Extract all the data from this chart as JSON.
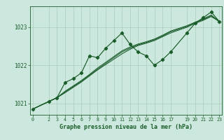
{
  "bg_color": "#cce8de",
  "grid_color": "#aaccbb",
  "line_color": "#1a5c2a",
  "marker_color": "#1a5c2a",
  "title": "Graphe pression niveau de la mer (hPa)",
  "title_color": "#1a5c2a",
  "xlim": [
    -0.3,
    23.3
  ],
  "ylim": [
    1020.7,
    1023.55
  ],
  "yticks": [
    1021,
    1022,
    1023
  ],
  "xticks": [
    0,
    2,
    3,
    4,
    5,
    6,
    7,
    8,
    9,
    10,
    11,
    12,
    13,
    14,
    15,
    16,
    17,
    19,
    20,
    21,
    22,
    23
  ],
  "series": [
    [
      0,
      1020.85
    ],
    [
      2,
      1021.05
    ],
    [
      3,
      1021.15
    ],
    [
      4,
      1021.55
    ],
    [
      5,
      1021.65
    ],
    [
      6,
      1021.8
    ],
    [
      7,
      1022.25
    ],
    [
      8,
      1022.2
    ],
    [
      9,
      1022.45
    ],
    [
      10,
      1022.65
    ],
    [
      11,
      1022.85
    ],
    [
      12,
      1022.55
    ],
    [
      13,
      1022.35
    ],
    [
      14,
      1022.25
    ],
    [
      15,
      1022.0
    ],
    [
      16,
      1022.15
    ],
    [
      17,
      1022.35
    ],
    [
      19,
      1022.85
    ],
    [
      20,
      1023.1
    ],
    [
      21,
      1023.25
    ],
    [
      22,
      1023.4
    ],
    [
      23,
      1023.15
    ]
  ],
  "series2": [
    [
      0,
      1020.85
    ],
    [
      2,
      1021.05
    ],
    [
      3,
      1021.15
    ],
    [
      4,
      1021.28
    ],
    [
      5,
      1021.42
    ],
    [
      6,
      1021.56
    ],
    [
      7,
      1021.72
    ],
    [
      8,
      1021.88
    ],
    [
      9,
      1022.02
    ],
    [
      10,
      1022.16
    ],
    [
      11,
      1022.3
    ],
    [
      12,
      1022.42
    ],
    [
      13,
      1022.52
    ],
    [
      14,
      1022.58
    ],
    [
      15,
      1022.65
    ],
    [
      16,
      1022.75
    ],
    [
      17,
      1022.85
    ],
    [
      19,
      1023.0
    ],
    [
      20,
      1023.1
    ],
    [
      21,
      1023.18
    ],
    [
      22,
      1023.28
    ],
    [
      23,
      1023.15
    ]
  ],
  "series3": [
    [
      0,
      1020.85
    ],
    [
      2,
      1021.05
    ],
    [
      3,
      1021.15
    ],
    [
      4,
      1021.3
    ],
    [
      5,
      1021.44
    ],
    [
      6,
      1021.58
    ],
    [
      7,
      1021.74
    ],
    [
      8,
      1021.9
    ],
    [
      9,
      1022.05
    ],
    [
      10,
      1022.2
    ],
    [
      11,
      1022.35
    ],
    [
      12,
      1022.45
    ],
    [
      13,
      1022.54
    ],
    [
      14,
      1022.6
    ],
    [
      15,
      1022.67
    ],
    [
      16,
      1022.77
    ],
    [
      17,
      1022.88
    ],
    [
      19,
      1023.02
    ],
    [
      20,
      1023.12
    ],
    [
      21,
      1023.2
    ],
    [
      22,
      1023.3
    ],
    [
      23,
      1023.15
    ]
  ],
  "series4": [
    [
      0,
      1020.85
    ],
    [
      2,
      1021.05
    ],
    [
      3,
      1021.15
    ],
    [
      4,
      1021.32
    ],
    [
      5,
      1021.46
    ],
    [
      6,
      1021.6
    ],
    [
      7,
      1021.76
    ],
    [
      8,
      1021.93
    ],
    [
      9,
      1022.08
    ],
    [
      10,
      1022.23
    ],
    [
      11,
      1022.38
    ],
    [
      12,
      1022.48
    ],
    [
      13,
      1022.56
    ],
    [
      14,
      1022.62
    ],
    [
      15,
      1022.69
    ],
    [
      16,
      1022.79
    ],
    [
      17,
      1022.9
    ],
    [
      19,
      1023.04
    ],
    [
      20,
      1023.13
    ],
    [
      21,
      1023.22
    ],
    [
      22,
      1023.32
    ],
    [
      23,
      1023.15
    ]
  ]
}
